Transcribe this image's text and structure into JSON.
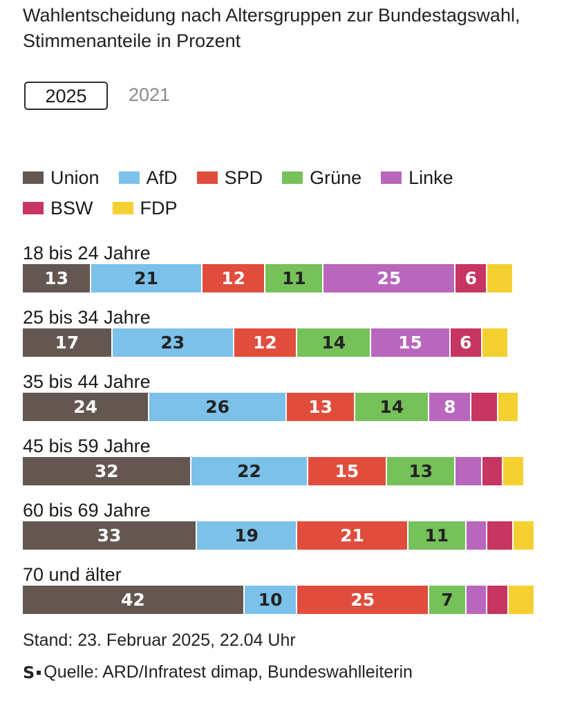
{
  "header": {
    "title": "Wahlentscheidung nach Altersgruppen zur Bundestagswahl, Stimmenanteile in Prozent"
  },
  "tabs": [
    {
      "label": "2025",
      "active": true
    },
    {
      "label": "2021",
      "active": false
    }
  ],
  "colors": {
    "Union": "#645751",
    "AfD": "#7cc1ea",
    "SPD": "#e04d3c",
    "Grüne": "#76c15a",
    "Linke": "#b867bd",
    "BSW": "#c73562",
    "FDP": "#f5d031"
  },
  "chart_data": {
    "type": "bar",
    "orientation": "horizontal",
    "stacked": true,
    "unit": "Prozent",
    "categories": [
      "18 bis 24 Jahre",
      "25 bis 34 Jahre",
      "35 bis 44 Jahre",
      "45 bis 59 Jahre",
      "60 bis 69 Jahre",
      "70 und älter"
    ],
    "series": [
      {
        "name": "Union",
        "values": [
          13,
          17,
          24,
          32,
          33,
          42
        ]
      },
      {
        "name": "AfD",
        "values": [
          21,
          23,
          26,
          22,
          19,
          10
        ]
      },
      {
        "name": "SPD",
        "values": [
          12,
          12,
          13,
          15,
          21,
          25
        ]
      },
      {
        "name": "Grüne",
        "values": [
          11,
          14,
          14,
          13,
          11,
          7
        ]
      },
      {
        "name": "Linke",
        "values": [
          25,
          15,
          8,
          5,
          4,
          4
        ]
      },
      {
        "name": "BSW",
        "values": [
          6,
          6,
          5,
          4,
          5,
          4
        ]
      },
      {
        "name": "FDP",
        "values": [
          5,
          5,
          4,
          4,
          4,
          5
        ]
      }
    ],
    "labeled": [
      [
        true,
        true,
        true,
        true,
        true,
        true,
        false
      ],
      [
        true,
        true,
        true,
        true,
        true,
        true,
        false
      ],
      [
        true,
        true,
        true,
        true,
        true,
        false,
        false
      ],
      [
        true,
        true,
        true,
        true,
        false,
        false,
        false
      ],
      [
        true,
        true,
        true,
        true,
        false,
        false,
        false
      ],
      [
        true,
        true,
        true,
        true,
        false,
        false,
        false
      ]
    ],
    "dark_label_series": [
      "AfD",
      "Grüne"
    ],
    "xlim": [
      0,
      100
    ]
  },
  "footer": {
    "stand": "Stand: 23. Februar 2025, 22.04 Uhr",
    "source_logo": "S",
    "source": "Quelle: ARD/Infratest dimap, Bundeswahlleiterin"
  }
}
